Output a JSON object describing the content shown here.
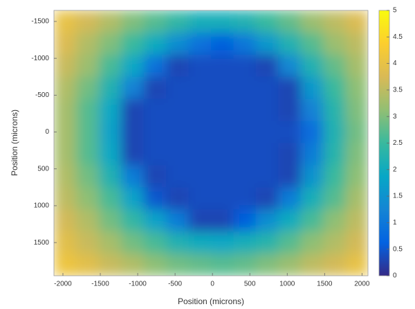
{
  "chart_data": {
    "type": "heatmap",
    "xlabel": "Position (microns)",
    "ylabel": "Position (microns)",
    "x": [
      -1970,
      -1670,
      -1370,
      -1070,
      -770,
      -470,
      -170,
      130,
      430,
      730,
      1030,
      1330,
      1630,
      1930
    ],
    "y": [
      -1500,
      -1200,
      -900,
      -600,
      -300,
      0,
      300,
      600,
      900,
      1200,
      1500,
      1800
    ],
    "z": [
      [
        4.0,
        3.7,
        3.4,
        3.0,
        2.7,
        2.4,
        2.1,
        2.1,
        2.2,
        2.5,
        2.8,
        3.2,
        3.5,
        3.8
      ],
      [
        3.8,
        3.4,
        3.0,
        2.5,
        2.0,
        1.4,
        0.9,
        0.6,
        1.0,
        1.6,
        2.2,
        2.7,
        3.2,
        3.5
      ],
      [
        3.6,
        3.2,
        2.6,
        1.9,
        0.9,
        0.3,
        0.4,
        0.4,
        0.4,
        0.3,
        1.3,
        2.2,
        2.8,
        3.3
      ],
      [
        3.4,
        2.9,
        2.2,
        1.2,
        0.3,
        0.4,
        0.4,
        0.4,
        0.4,
        0.4,
        0.3,
        1.6,
        2.5,
        3.1
      ],
      [
        3.3,
        2.7,
        1.9,
        0.3,
        0.4,
        0.4,
        0.4,
        0.4,
        0.4,
        0.4,
        0.3,
        1.2,
        2.3,
        3.0
      ],
      [
        3.3,
        2.7,
        1.8,
        0.3,
        0.4,
        0.4,
        0.4,
        0.4,
        0.4,
        0.4,
        0.4,
        0.8,
        2.2,
        2.9
      ],
      [
        3.3,
        2.7,
        1.9,
        0.3,
        0.4,
        0.4,
        0.4,
        0.4,
        0.4,
        0.4,
        0.3,
        1.1,
        2.3,
        3.0
      ],
      [
        3.4,
        2.9,
        2.2,
        1.1,
        0.3,
        0.4,
        0.4,
        0.4,
        0.4,
        0.4,
        0.3,
        1.5,
        2.5,
        3.1
      ],
      [
        3.5,
        3.1,
        2.6,
        1.8,
        0.5,
        0.3,
        0.4,
        0.4,
        0.4,
        0.3,
        1.1,
        2.1,
        2.7,
        3.3
      ],
      [
        3.7,
        3.4,
        2.9,
        2.4,
        1.8,
        1.1,
        0.3,
        0.3,
        0.6,
        1.4,
        2.0,
        2.6,
        3.1,
        3.5
      ],
      [
        3.9,
        3.6,
        3.3,
        2.9,
        2.6,
        2.2,
        2.0,
        1.9,
        2.1,
        2.3,
        2.7,
        3.1,
        3.4,
        3.7
      ],
      [
        4.1,
        3.9,
        3.6,
        3.4,
        3.1,
        2.9,
        2.8,
        2.7,
        2.8,
        3.0,
        3.2,
        3.5,
        3.7,
        4.0
      ]
    ],
    "xlim": [
      -2120,
      2080
    ],
    "ylim": [
      -1650,
      1950
    ],
    "y_direction": "reverse",
    "xticks": [
      -2000,
      -1500,
      -1000,
      -500,
      0,
      500,
      1000,
      1500,
      2000
    ],
    "yticks": [
      -1500,
      -1000,
      -500,
      0,
      500,
      1000,
      1500
    ],
    "colormap": "parula",
    "clim": [
      0,
      5
    ],
    "cticks": [
      0,
      0.5,
      1,
      1.5,
      2,
      2.5,
      3,
      3.5,
      4,
      4.5,
      5
    ]
  }
}
